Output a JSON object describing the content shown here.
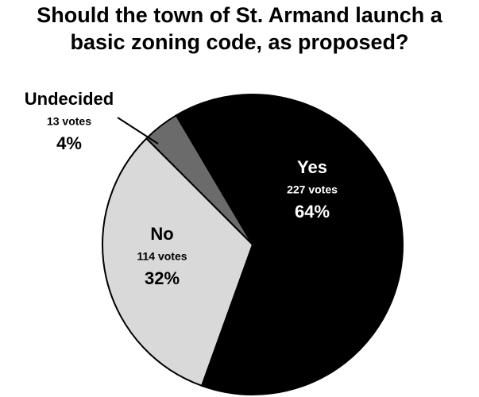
{
  "chart_data": {
    "type": "pie",
    "title": "Should the town of St. Armand launch a\nbasic zoning code, as proposed?",
    "categories": [
      "Yes",
      "No",
      "Undecided"
    ],
    "values": [
      64,
      32,
      4
    ],
    "value_labels": [
      "64%",
      "32%",
      "4%"
    ],
    "vote_labels": [
      "227 votes",
      "114 votes",
      "13 votes"
    ],
    "colors": [
      "#000000",
      "#d9d9d9",
      "#6b6b6b"
    ]
  }
}
